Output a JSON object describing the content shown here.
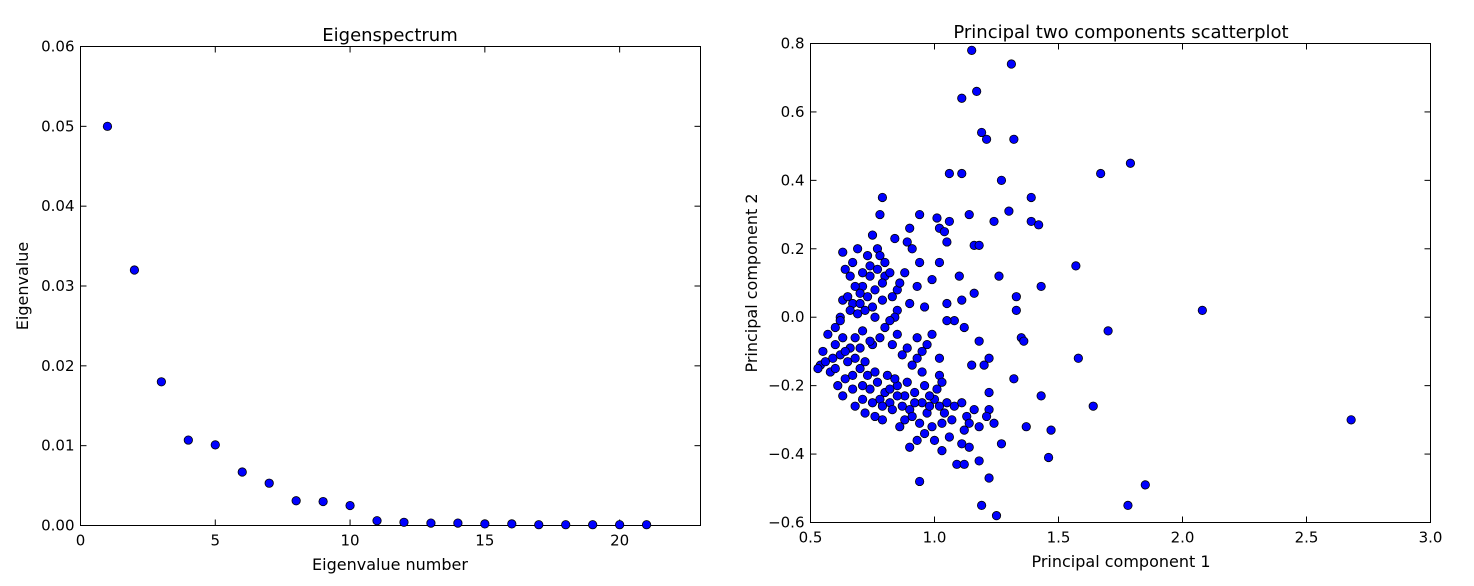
{
  "chart_data": [
    {
      "type": "scatter",
      "title": "Eigenspectrum",
      "xlabel": "Eigenvalue number",
      "ylabel": "Eigenvalue",
      "xlim": [
        0,
        23
      ],
      "ylim": [
        0.0,
        0.06
      ],
      "xticks": [
        0,
        5,
        10,
        15,
        20
      ],
      "xtick_labels": [
        "0",
        "5",
        "10",
        "15",
        "20"
      ],
      "yticks": [
        0.0,
        0.01,
        0.02,
        0.03,
        0.04,
        0.05,
        0.06
      ],
      "ytick_labels": [
        "0.00",
        "0.01",
        "0.02",
        "0.03",
        "0.04",
        "0.05",
        "0.06"
      ],
      "grid": false,
      "series": [
        {
          "color": "#0000ff",
          "x": [
            1,
            2,
            3,
            4,
            5,
            6,
            7,
            8,
            9,
            10,
            11,
            12,
            13,
            14,
            15,
            16,
            17,
            18,
            19,
            20,
            21
          ],
          "y": [
            0.05,
            0.032,
            0.018,
            0.0107,
            0.0101,
            0.0067,
            0.0053,
            0.0031,
            0.003,
            0.0025,
            0.0006,
            0.0004,
            0.0003,
            0.0003,
            0.0002,
            0.0002,
            0.0001,
            0.0001,
            0.0001,
            0.0001,
            0.0001
          ]
        }
      ]
    },
    {
      "type": "scatter",
      "title": "Principal two components scatterplot",
      "xlabel": "Principal component 1",
      "ylabel": "Principal component 2",
      "xlim": [
        0.5,
        3.0
      ],
      "ylim": [
        -0.6,
        0.8
      ],
      "xticks": [
        0.5,
        1.0,
        1.5,
        2.0,
        2.5,
        3.0
      ],
      "xtick_labels": [
        "0.5",
        "1.0",
        "1.5",
        "2.0",
        "2.5",
        "3.0"
      ],
      "yticks": [
        -0.6,
        -0.4,
        -0.2,
        0.0,
        0.2,
        0.4,
        0.6,
        0.8
      ],
      "ytick_labels": [
        "−0.6",
        "−0.4",
        "−0.2",
        "0.0",
        "0.2",
        "0.4",
        "0.6",
        "0.8"
      ],
      "grid": false,
      "series": [
        {
          "color": "#0000ff",
          "points": [
            [
              1.15,
              0.78
            ],
            [
              1.31,
              0.74
            ],
            [
              1.17,
              0.66
            ],
            [
              1.11,
              0.64
            ],
            [
              1.19,
              0.54
            ],
            [
              1.21,
              0.52
            ],
            [
              1.32,
              0.52
            ],
            [
              1.79,
              0.45
            ],
            [
              1.67,
              0.42
            ],
            [
              1.06,
              0.42
            ],
            [
              1.11,
              0.42
            ],
            [
              1.27,
              0.4
            ],
            [
              1.39,
              0.35
            ],
            [
              0.79,
              0.35
            ],
            [
              1.14,
              0.3
            ],
            [
              1.3,
              0.31
            ],
            [
              0.78,
              0.3
            ],
            [
              0.94,
              0.3
            ],
            [
              1.01,
              0.29
            ],
            [
              1.24,
              0.28
            ],
            [
              1.39,
              0.28
            ],
            [
              1.42,
              0.27
            ],
            [
              1.06,
              0.28
            ],
            [
              1.02,
              0.26
            ],
            [
              0.9,
              0.26
            ],
            [
              1.04,
              0.25
            ],
            [
              0.75,
              0.24
            ],
            [
              1.05,
              0.22
            ],
            [
              1.16,
              0.21
            ],
            [
              1.18,
              0.21
            ],
            [
              0.89,
              0.22
            ],
            [
              0.84,
              0.23
            ],
            [
              0.91,
              0.2
            ],
            [
              0.77,
              0.2
            ],
            [
              0.69,
              0.2
            ],
            [
              0.63,
              0.19
            ],
            [
              0.78,
              0.18
            ],
            [
              1.57,
              0.15
            ],
            [
              1.02,
              0.16
            ],
            [
              0.94,
              0.16
            ],
            [
              0.74,
              0.15
            ],
            [
              1.26,
              0.12
            ],
            [
              1.1,
              0.12
            ],
            [
              0.99,
              0.11
            ],
            [
              0.8,
              0.12
            ],
            [
              0.66,
              0.12
            ],
            [
              0.93,
              0.09
            ],
            [
              0.71,
              0.09
            ],
            [
              1.43,
              0.09
            ],
            [
              0.85,
              0.08
            ],
            [
              1.16,
              0.07
            ],
            [
              1.33,
              0.06
            ],
            [
              0.63,
              0.05
            ],
            [
              0.67,
              0.04
            ],
            [
              1.11,
              0.05
            ],
            [
              1.05,
              0.04
            ],
            [
              0.9,
              0.04
            ],
            [
              0.96,
              0.03
            ],
            [
              0.85,
              0.02
            ],
            [
              1.33,
              0.02
            ],
            [
              2.08,
              0.02
            ],
            [
              1.08,
              -0.01
            ],
            [
              0.62,
              0.0
            ],
            [
              0.84,
              0.0
            ],
            [
              1.05,
              -0.01
            ],
            [
              0.82,
              -0.01
            ],
            [
              1.12,
              -0.03
            ],
            [
              1.7,
              -0.04
            ],
            [
              0.99,
              -0.05
            ],
            [
              0.93,
              -0.06
            ],
            [
              1.35,
              -0.06
            ],
            [
              1.18,
              -0.07
            ],
            [
              1.36,
              -0.07
            ],
            [
              0.97,
              -0.08
            ],
            [
              0.83,
              -0.08
            ],
            [
              0.75,
              -0.08
            ],
            [
              0.7,
              -0.09
            ],
            [
              0.87,
              -0.11
            ],
            [
              0.93,
              -0.12
            ],
            [
              1.58,
              -0.12
            ],
            [
              1.22,
              -0.12
            ],
            [
              0.91,
              -0.14
            ],
            [
              1.15,
              -0.14
            ],
            [
              1.2,
              -0.14
            ],
            [
              0.95,
              -0.16
            ],
            [
              1.02,
              -0.17
            ],
            [
              1.32,
              -0.18
            ],
            [
              1.03,
              -0.19
            ],
            [
              0.58,
              -0.16
            ],
            [
              0.54,
              -0.14
            ],
            [
              0.55,
              -0.1
            ],
            [
              0.57,
              -0.05
            ],
            [
              0.6,
              -0.08
            ],
            [
              0.62,
              -0.11
            ],
            [
              0.65,
              -0.13
            ],
            [
              0.68,
              -0.12
            ],
            [
              0.7,
              -0.15
            ],
            [
              0.73,
              -0.17
            ],
            [
              0.74,
              -0.21
            ],
            [
              0.77,
              -0.19
            ],
            [
              0.8,
              -0.22
            ],
            [
              0.82,
              -0.25
            ],
            [
              0.85,
              -0.2
            ],
            [
              0.88,
              -0.23
            ],
            [
              0.9,
              -0.27
            ],
            [
              0.92,
              -0.22
            ],
            [
              0.95,
              -0.25
            ],
            [
              0.97,
              -0.28
            ],
            [
              1.0,
              -0.24
            ],
            [
              1.02,
              -0.26
            ],
            [
              1.05,
              -0.25
            ],
            [
              1.08,
              -0.26
            ],
            [
              1.11,
              -0.25
            ],
            [
              1.13,
              -0.29
            ],
            [
              1.16,
              -0.27
            ],
            [
              1.22,
              -0.22
            ],
            [
              1.22,
              -0.27
            ],
            [
              1.21,
              -0.29
            ],
            [
              1.14,
              -0.31
            ],
            [
              1.07,
              -0.3
            ],
            [
              1.03,
              -0.31
            ],
            [
              0.99,
              -0.32
            ],
            [
              0.96,
              -0.34
            ],
            [
              0.93,
              -0.36
            ],
            [
              0.9,
              -0.38
            ],
            [
              1.0,
              -0.36
            ],
            [
              1.06,
              -0.35
            ],
            [
              1.12,
              -0.33
            ],
            [
              1.18,
              -0.32
            ],
            [
              1.24,
              -0.31
            ],
            [
              1.11,
              -0.37
            ],
            [
              1.14,
              -0.38
            ],
            [
              1.03,
              -0.39
            ],
            [
              1.27,
              -0.37
            ],
            [
              1.37,
              -0.32
            ],
            [
              1.43,
              -0.23
            ],
            [
              1.47,
              -0.33
            ],
            [
              1.09,
              -0.43
            ],
            [
              1.12,
              -0.43
            ],
            [
              1.18,
              -0.42
            ],
            [
              1.46,
              -0.41
            ],
            [
              1.22,
              -0.47
            ],
            [
              0.94,
              -0.48
            ],
            [
              1.19,
              -0.55
            ],
            [
              1.25,
              -0.58
            ],
            [
              1.78,
              -0.55
            ],
            [
              1.85,
              -0.49
            ],
            [
              1.64,
              -0.26
            ],
            [
              2.68,
              -0.3
            ],
            [
              0.63,
              -0.23
            ],
            [
              0.68,
              -0.26
            ],
            [
              0.72,
              -0.28
            ],
            [
              0.76,
              -0.29
            ],
            [
              0.79,
              -0.3
            ],
            [
              0.86,
              -0.32
            ],
            [
              0.88,
              -0.3
            ],
            [
              0.61,
              -0.2
            ],
            [
              0.64,
              -0.18
            ],
            [
              0.67,
              -0.17
            ],
            [
              0.71,
              -0.2
            ],
            [
              0.78,
              -0.24
            ],
            [
              0.83,
              -0.27
            ],
            [
              0.87,
              -0.26
            ],
            [
              0.91,
              -0.29
            ],
            [
              0.94,
              -0.31
            ],
            [
              0.98,
              -0.23
            ],
            [
              1.01,
              -0.21
            ],
            [
              0.96,
              -0.2
            ],
            [
              0.89,
              -0.19
            ],
            [
              0.84,
              -0.18
            ],
            [
              0.81,
              -0.17
            ],
            [
              0.76,
              -0.16
            ],
            [
              0.72,
              -0.13
            ],
            [
              0.66,
              -0.09
            ],
            [
              0.63,
              -0.06
            ],
            [
              0.6,
              -0.03
            ],
            [
              0.62,
              -0.01
            ],
            [
              0.66,
              0.02
            ],
            [
              0.7,
              0.04
            ],
            [
              0.73,
              0.06
            ],
            [
              0.76,
              0.08
            ],
            [
              0.79,
              0.1
            ],
            [
              0.82,
              0.13
            ],
            [
              0.8,
              0.16
            ],
            [
              0.74,
              0.12
            ],
            [
              0.71,
              0.13
            ],
            [
              0.68,
              0.09
            ],
            [
              0.65,
              0.06
            ],
            [
              0.69,
              0.01
            ],
            [
              0.72,
              0.02
            ],
            [
              0.76,
              0.0
            ],
            [
              0.79,
              0.05
            ],
            [
              0.83,
              0.06
            ],
            [
              0.86,
              0.1
            ],
            [
              0.88,
              0.13
            ],
            [
              0.77,
              0.14
            ],
            [
              0.73,
              0.18
            ],
            [
              0.67,
              0.16
            ],
            [
              0.64,
              0.14
            ],
            [
              0.7,
              0.07
            ],
            [
              0.75,
              0.03
            ],
            [
              0.8,
              -0.03
            ],
            [
              0.78,
              -0.06
            ],
            [
              0.85,
              -0.05
            ],
            [
              0.89,
              -0.09
            ],
            [
              0.95,
              -0.1
            ],
            [
              1.02,
              -0.12
            ],
            [
              0.59,
              -0.12
            ],
            [
              0.56,
              -0.13
            ],
            [
              0.53,
              -0.15
            ],
            [
              0.6,
              -0.15
            ],
            [
              0.64,
              -0.1
            ],
            [
              0.68,
              -0.06
            ],
            [
              0.71,
              -0.04
            ],
            [
              0.74,
              -0.07
            ],
            [
              0.82,
              -0.21
            ],
            [
              0.85,
              -0.23
            ],
            [
              0.79,
              -0.26
            ],
            [
              0.75,
              -0.25
            ],
            [
              0.71,
              -0.24
            ],
            [
              0.67,
              -0.21
            ],
            [
              0.92,
              -0.25
            ],
            [
              0.98,
              -0.26
            ],
            [
              1.04,
              -0.28
            ]
          ]
        }
      ]
    }
  ]
}
